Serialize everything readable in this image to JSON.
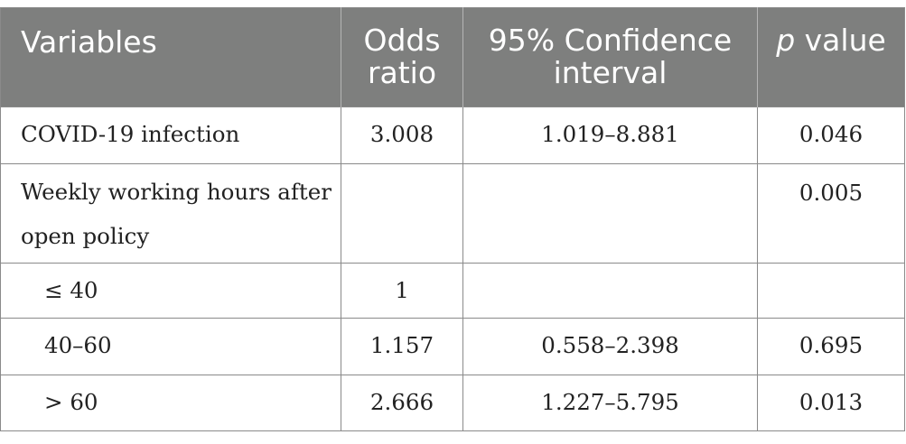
{
  "table": {
    "headers": {
      "variables": "Variables",
      "odds_ratio_line1": "Odds",
      "odds_ratio_line2": "ratio",
      "ci_line1": "95% Confidence",
      "ci_line2": "interval",
      "p_italic": "p",
      "p_rest": " value"
    },
    "rows": [
      {
        "label": "COVID-19 infection",
        "odds_ratio": "3.008",
        "ci": "1.019–8.881",
        "p": "0.046"
      },
      {
        "label_line1": "Weekly working hours after",
        "label_line2": "open policy",
        "odds_ratio": "",
        "ci": "",
        "p": "0.005"
      },
      {
        "label": "≤ 40",
        "odds_ratio": "1",
        "ci": "",
        "p": ""
      },
      {
        "label": "40–60",
        "odds_ratio": "1.157",
        "ci": "0.558–2.398",
        "p": "0.695"
      },
      {
        "label": "> 60",
        "odds_ratio": "2.666",
        "ci": "1.227–5.795",
        "p": "0.013"
      }
    ]
  }
}
